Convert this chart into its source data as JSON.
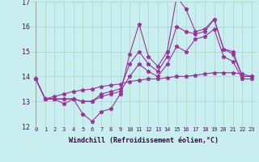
{
  "xlabel": "Windchill (Refroidissement éolien,°C)",
  "xlim": [
    -0.5,
    23.5
  ],
  "ylim": [
    12,
    17
  ],
  "yticks": [
    12,
    13,
    14,
    15,
    16,
    17
  ],
  "xticks": [
    0,
    1,
    2,
    3,
    4,
    5,
    6,
    7,
    8,
    9,
    10,
    11,
    12,
    13,
    14,
    15,
    16,
    17,
    18,
    19,
    20,
    21,
    22,
    23
  ],
  "background_color": "#c8eef0",
  "grid_color": "#b0d8cc",
  "line_color": "#993399",
  "line1_y": [
    13.9,
    13.1,
    13.1,
    12.9,
    13.1,
    12.5,
    12.2,
    12.6,
    12.7,
    13.3,
    14.9,
    16.1,
    14.8,
    14.4,
    15.0,
    17.2,
    16.7,
    15.8,
    15.9,
    16.3,
    15.1,
    14.9,
    14.0,
    14.0
  ],
  "line2_y": [
    13.9,
    13.1,
    13.1,
    13.1,
    13.1,
    13.0,
    13.0,
    13.3,
    13.4,
    13.5,
    14.5,
    15.0,
    14.5,
    14.2,
    14.8,
    16.0,
    15.8,
    15.7,
    15.8,
    16.3,
    15.1,
    15.0,
    14.0,
    14.0
  ],
  "line3_y": [
    13.9,
    13.1,
    13.1,
    13.1,
    13.1,
    13.0,
    13.0,
    13.2,
    13.3,
    13.4,
    14.0,
    14.5,
    14.2,
    14.0,
    14.5,
    15.2,
    15.0,
    15.5,
    15.6,
    15.9,
    14.8,
    14.6,
    13.9,
    13.9
  ],
  "line4_y": [
    13.9,
    13.1,
    13.2,
    13.3,
    13.4,
    13.45,
    13.5,
    13.6,
    13.65,
    13.7,
    13.8,
    13.85,
    13.9,
    13.9,
    13.95,
    14.0,
    14.0,
    14.05,
    14.1,
    14.15,
    14.15,
    14.15,
    14.1,
    14.0
  ]
}
